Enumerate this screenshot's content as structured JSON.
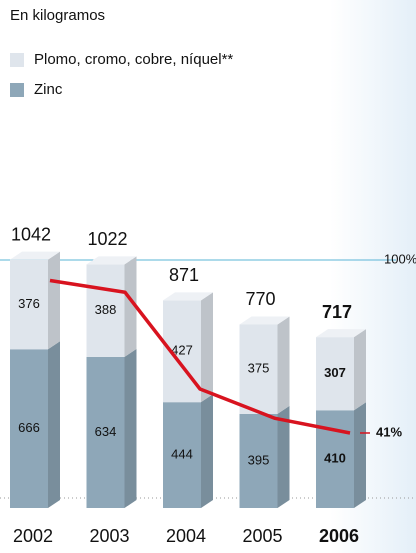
{
  "chart_data": {
    "type": "bar",
    "subtitle": "En kilogramos",
    "categories": [
      "2002",
      "2003",
      "2004",
      "2005",
      "2006"
    ],
    "totals": [
      1042,
      1022,
      871,
      770,
      717
    ],
    "series": [
      {
        "name": "Plomo, cromo, cobre, níquel**",
        "color": "#dfe5ec",
        "values": [
          376,
          388,
          427,
          375,
          307
        ]
      },
      {
        "name": "Zinc",
        "color": "#8ea7b8",
        "values": [
          666,
          634,
          444,
          395,
          410
        ]
      }
    ],
    "ylim": [
      0,
      1200
    ],
    "line": {
      "type": "line",
      "color": "#d8131f",
      "axis": "y2",
      "values": [
        93,
        89,
        56,
        46,
        41
      ]
    },
    "y2lim": [
      0,
      100
    ],
    "y2ticks": [
      {
        "value": 100,
        "label": "100%"
      },
      {
        "value": 41,
        "label": "41%"
      }
    ]
  }
}
